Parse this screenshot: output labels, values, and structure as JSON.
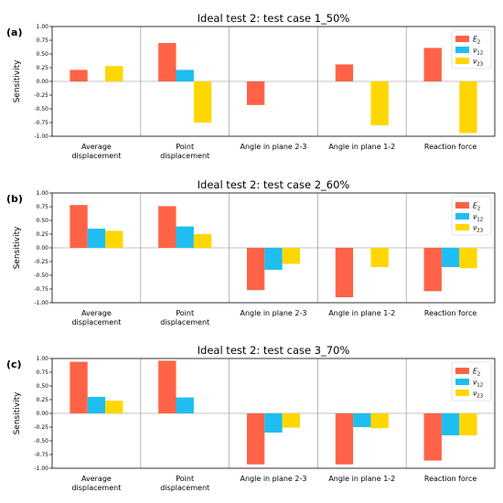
{
  "chart_data": [
    {
      "type": "bar",
      "panel_label": "(a)",
      "title": "Ideal test 2: test case 1_50%",
      "ylabel": "Sensitivity",
      "ylim": [
        -1.0,
        1.0
      ],
      "yticks": [
        "1.00",
        "0.75",
        "0.50",
        "0.25",
        "0.00",
        "-0.25",
        "-0.50",
        "-0.75",
        "-1.00"
      ],
      "categories": [
        [
          "Average",
          "displacement"
        ],
        [
          "Point",
          "displacement"
        ],
        [
          "Angle in plane 2-3"
        ],
        [
          "Angle in plane 1-2"
        ],
        [
          "Reaction force"
        ]
      ],
      "legend_position": "top-right",
      "series": [
        {
          "name_main": "E",
          "name_sub": "2",
          "color": "#FF6347",
          "values": [
            0.21,
            0.7,
            -0.43,
            0.31,
            0.61
          ]
        },
        {
          "name_main": "ν",
          "name_sub": "12",
          "color": "#1EBEF0",
          "values": [
            0.0,
            0.21,
            0.0,
            0.0,
            0.0
          ]
        },
        {
          "name_main": "ν",
          "name_sub": "23",
          "color": "#FFD700",
          "values": [
            0.28,
            -0.75,
            0.0,
            -0.8,
            -0.94
          ]
        }
      ]
    },
    {
      "type": "bar",
      "panel_label": "(b)",
      "title": "Ideal test 2: test case 2_60%",
      "ylabel": "Sensitivity",
      "ylim": [
        -1.0,
        1.0
      ],
      "yticks": [
        "1.00",
        "0.75",
        "0.50",
        "0.25",
        "0.00",
        "-0.25",
        "-0.50",
        "-0.75",
        "-1.00"
      ],
      "categories": [
        [
          "Average",
          "displacement"
        ],
        [
          "Point",
          "displacement"
        ],
        [
          "Angle in plane 2-3"
        ],
        [
          "Angle in plane 1-2"
        ],
        [
          "Reaction force"
        ]
      ],
      "legend_position": "top-right",
      "series": [
        {
          "name_main": "E",
          "name_sub": "2",
          "color": "#FF6347",
          "values": [
            0.78,
            0.76,
            -0.77,
            -0.9,
            -0.79
          ]
        },
        {
          "name_main": "ν",
          "name_sub": "12",
          "color": "#1EBEF0",
          "values": [
            0.35,
            0.39,
            -0.4,
            0.0,
            -0.35
          ]
        },
        {
          "name_main": "ν",
          "name_sub": "23",
          "color": "#FFD700",
          "values": [
            0.31,
            0.25,
            -0.29,
            -0.35,
            -0.37
          ]
        }
      ]
    },
    {
      "type": "bar",
      "panel_label": "(c)",
      "title": "Ideal test 2: test case 3_70%",
      "ylabel": "Sensitivity",
      "ylim": [
        -1.0,
        1.0
      ],
      "yticks": [
        "1.00",
        "0.75",
        "0.50",
        "0.25",
        "0.00",
        "-0.25",
        "-0.50",
        "-0.75",
        "-1.00"
      ],
      "categories": [
        [
          "Average",
          "displacement"
        ],
        [
          "Point",
          "displacement"
        ],
        [
          "Angle in plane 2-3"
        ],
        [
          "Angle in plane 1-2"
        ],
        [
          "Reaction force"
        ]
      ],
      "legend_position": "top-right",
      "series": [
        {
          "name_main": "E",
          "name_sub": "2",
          "color": "#FF6347",
          "values": [
            0.94,
            0.96,
            -0.93,
            -0.93,
            -0.86
          ]
        },
        {
          "name_main": "ν",
          "name_sub": "12",
          "color": "#1EBEF0",
          "values": [
            0.3,
            0.29,
            -0.35,
            -0.25,
            -0.4
          ]
        },
        {
          "name_main": "ν",
          "name_sub": "23",
          "color": "#FFD700",
          "values": [
            0.23,
            0.0,
            -0.26,
            -0.27,
            -0.4
          ]
        }
      ]
    }
  ]
}
